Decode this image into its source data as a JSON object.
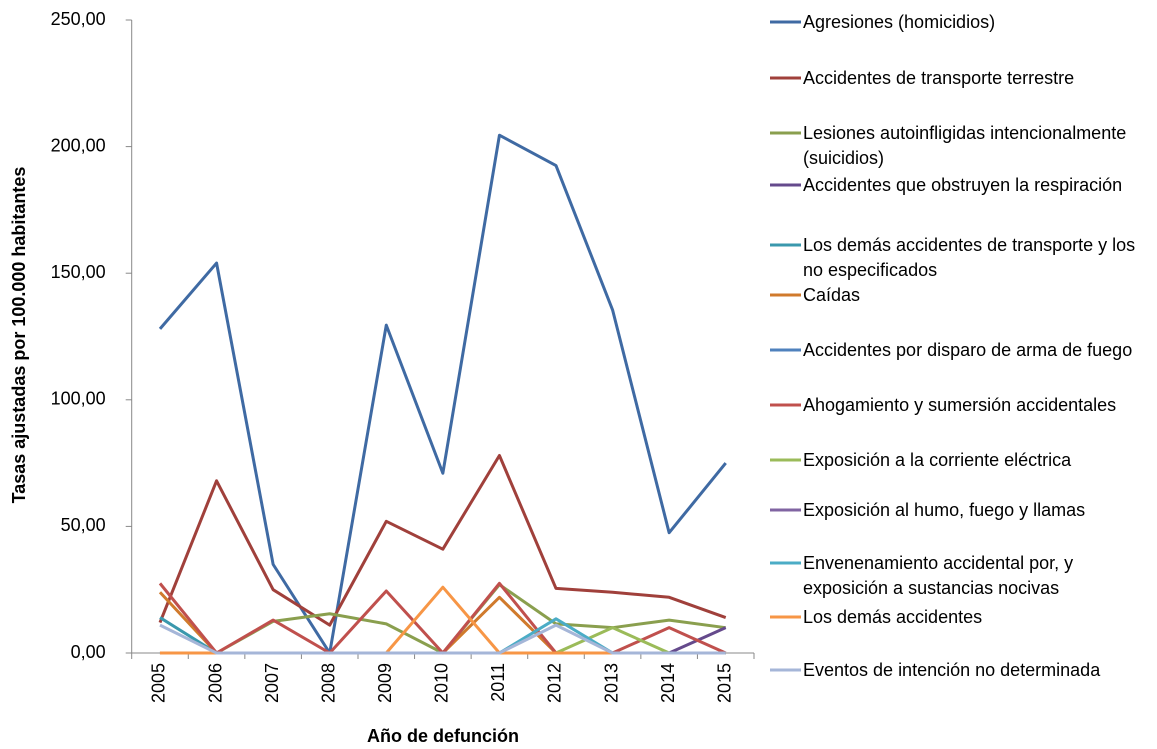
{
  "chart_data": {
    "type": "line",
    "y_label": "Tasas ajustadas por 100.000 habitantes",
    "x_label": "Año de defunción",
    "categories": [
      "2005",
      "2006",
      "2007",
      "2008",
      "2009",
      "2010",
      "2011",
      "2012",
      "2013",
      "2014",
      "2015"
    ],
    "ylim": [
      0,
      250
    ],
    "yticks": [
      {
        "value": 0,
        "label": "0,00"
      },
      {
        "value": 50,
        "label": "50,00"
      },
      {
        "value": 100,
        "label": "100,00"
      },
      {
        "value": 150,
        "label": "150,00"
      },
      {
        "value": 200,
        "label": "200,00"
      },
      {
        "value": 250,
        "label": "250,00"
      }
    ],
    "grid": false,
    "legend": "right",
    "series": [
      {
        "name": "Agresiones (homicidios)",
        "color": "#3f6aa3",
        "values": [
          128,
          154,
          35,
          0,
          129.5,
          71,
          204.5,
          192.5,
          135.5,
          47.5,
          75
        ]
      },
      {
        "name": "Accidentes de transporte terrestre",
        "color": "#a0403b",
        "values": [
          12,
          68,
          25,
          11,
          52,
          41,
          78,
          25.5,
          24,
          22,
          14
        ]
      },
      {
        "name": "Lesiones autoinfligidas intencionalmente (suicidios)",
        "color": "#8a9f4e",
        "values": [
          0,
          0,
          12.5,
          15.5,
          11.5,
          0,
          27,
          11.5,
          10,
          13,
          10
        ]
      },
      {
        "name": "Accidentes que obstruyen la respiración",
        "color": "#654a8c",
        "values": [
          0,
          0,
          0,
          0,
          0,
          0,
          0,
          0,
          0,
          0,
          10
        ]
      },
      {
        "name": "Los demás accidentes de transporte y los no especificados",
        "color": "#3a98ad",
        "values": [
          14,
          0,
          0,
          0,
          0,
          0,
          0,
          0,
          0,
          0,
          0
        ]
      },
      {
        "name": "Caídas",
        "color": "#d07a2c",
        "values": [
          24,
          0,
          0,
          0,
          0,
          0,
          22,
          0,
          0,
          0,
          0
        ]
      },
      {
        "name": "Accidentes por disparo de arma de fuego",
        "color": "#4f81bd",
        "values": [
          0,
          0,
          0,
          0,
          0,
          0,
          0,
          0,
          0,
          0,
          0
        ]
      },
      {
        "name": "Ahogamiento y sumersión accidentales",
        "color": "#c0504d",
        "values": [
          27.5,
          0,
          13,
          0,
          24.5,
          0,
          27.5,
          0,
          0,
          10,
          0
        ]
      },
      {
        "name": "Exposición a la corriente eléctrica",
        "color": "#9bbb59",
        "values": [
          0,
          0,
          0,
          0,
          0,
          0,
          0,
          0,
          10,
          0,
          0
        ]
      },
      {
        "name": "Exposición al humo, fuego y llamas",
        "color": "#8064a2",
        "values": [
          0,
          0,
          0,
          0,
          0,
          0,
          0,
          0,
          0,
          0,
          0
        ]
      },
      {
        "name": "Envenenamiento accidental por, y exposición a sustancias nocivas",
        "color": "#4bacc6",
        "values": [
          0,
          0,
          0,
          0,
          0,
          0,
          0,
          13.5,
          0,
          0,
          0
        ]
      },
      {
        "name": "Los demás accidentes",
        "color": "#f79646",
        "values": [
          0,
          0,
          0,
          0,
          0,
          26,
          0,
          0,
          0,
          0,
          0
        ]
      },
      {
        "name": "Eventos de intención no determinada",
        "color": "#a5b6d8",
        "values": [
          11,
          0,
          0,
          0,
          0,
          0,
          0,
          11,
          0,
          0,
          0
        ]
      }
    ]
  }
}
